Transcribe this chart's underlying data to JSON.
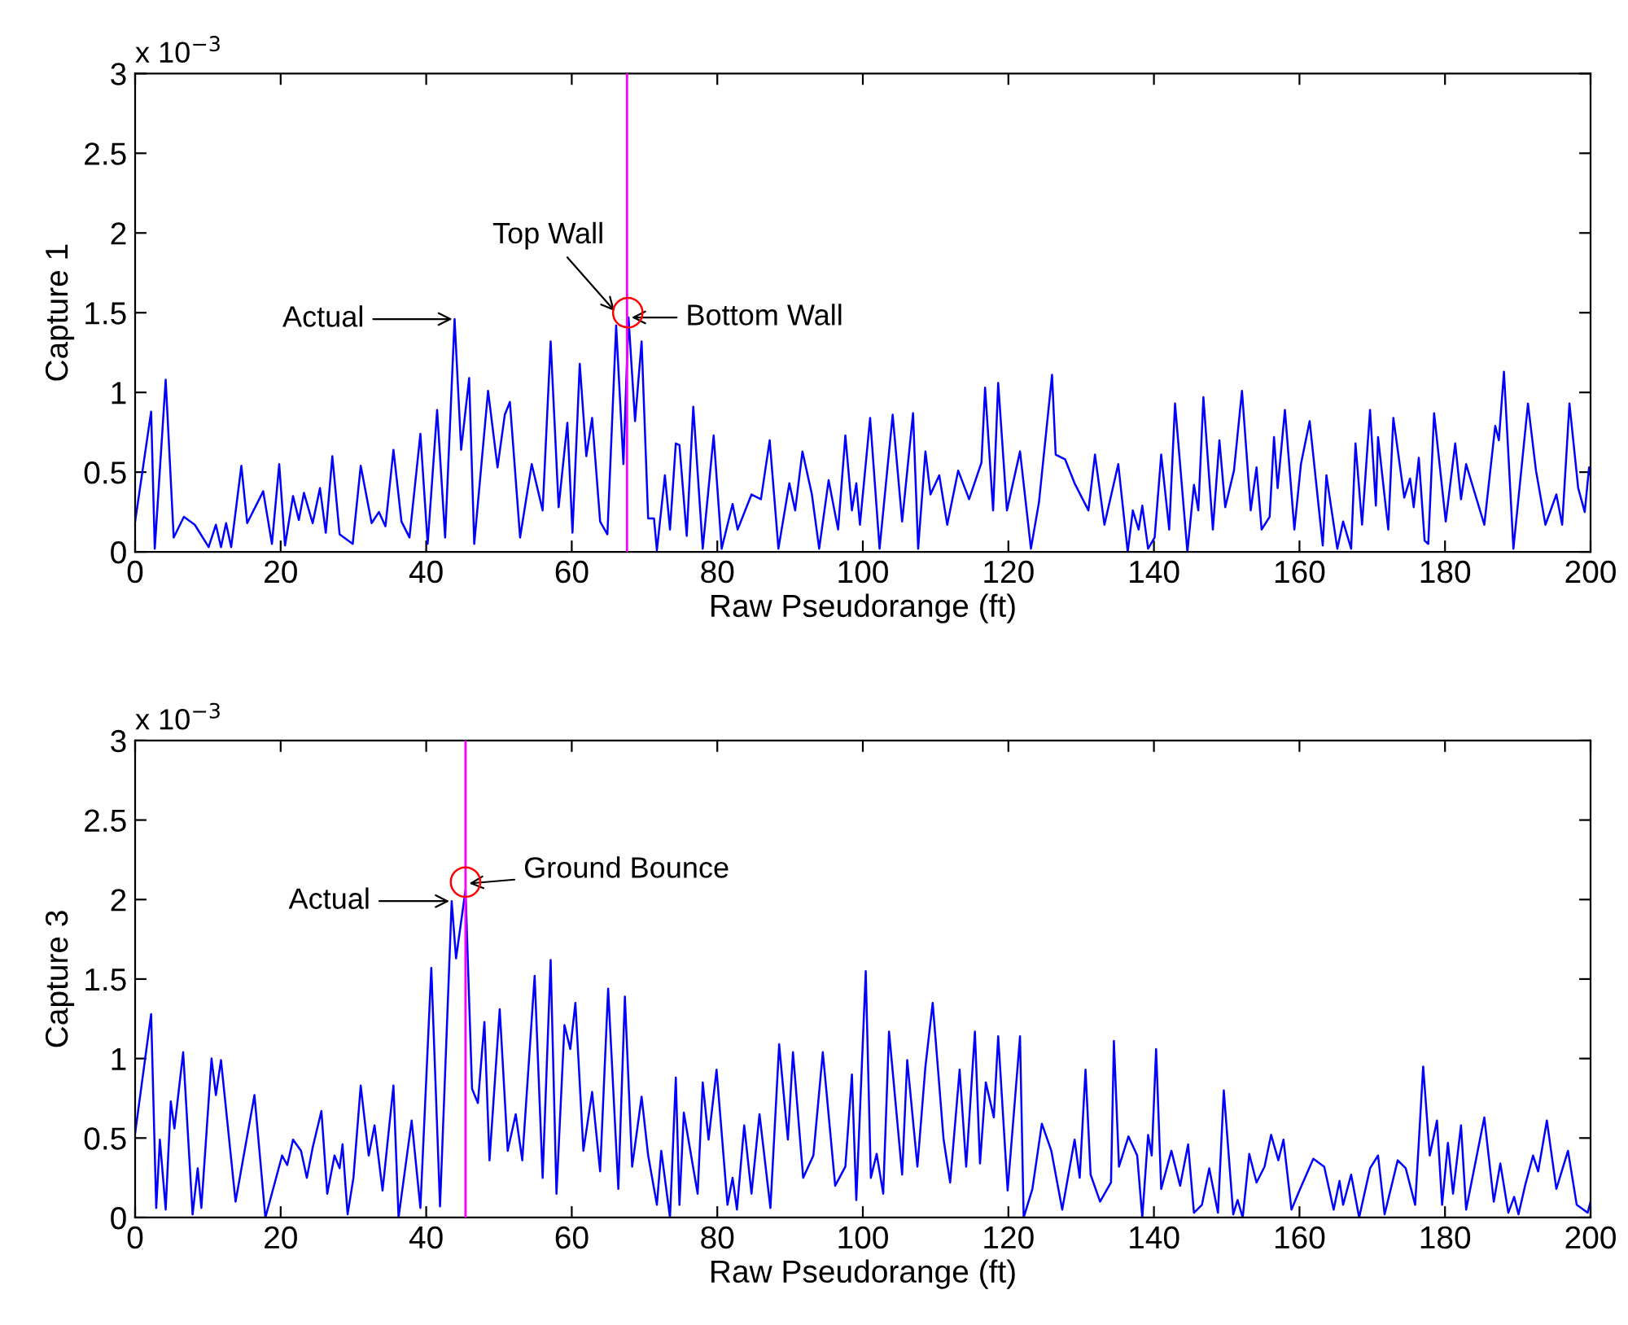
{
  "chart_data": [
    {
      "type": "line",
      "xlabel": "Raw Pseudorange (ft)",
      "ylabel": "Capture 1",
      "xlim": [
        0,
        200
      ],
      "ylim": [
        0,
        3
      ],
      "xticks": [
        0,
        20,
        40,
        60,
        80,
        100,
        120,
        140,
        160,
        180,
        200
      ],
      "yticks": [
        0,
        0.5,
        1,
        1.5,
        2,
        2.5,
        3
      ],
      "grid": false,
      "legend": false,
      "series": [
        {
          "color": "#0000ff",
          "x": [
            0,
            2.2,
            2.7,
            4.2,
            5.3,
            6.7,
            8.2,
            10.1,
            11.1,
            11.8,
            12.5,
            13.2,
            14.6,
            15.4,
            17.6,
            18.8,
            19.8,
            20.6,
            21.7,
            22.5,
            23.2,
            24.4,
            25.4,
            26.2,
            27.1,
            28.1,
            29.9,
            31.0,
            32.5,
            33.5,
            34.4,
            35.5,
            36.6,
            37.7,
            39.2,
            40.2,
            41.5,
            42.6,
            43.9,
            44.8,
            45.9,
            46.6,
            48.5,
            49.8,
            50.8,
            51.5,
            52.9,
            54.5,
            56.0,
            57.1,
            58.2,
            59.4,
            60.1,
            61.1,
            62.0,
            62.8,
            63.9,
            64.9,
            66.1,
            67.1,
            67.8,
            68.7,
            69.6,
            70.5,
            71.3,
            71.7,
            72.8,
            73.5,
            74.3,
            74.8,
            75.8,
            76.7,
            78.0,
            79.5,
            80.6,
            82.1,
            82.8,
            84.7,
            86.0,
            87.2,
            88.4,
            89.9,
            90.7,
            91.7,
            93.0,
            94.0,
            95.3,
            96.6,
            97.6,
            98.5,
            99.1,
            99.6,
            101.0,
            102.3,
            104.1,
            105.4,
            106.9,
            107.6,
            108.6,
            109.3,
            110.5,
            111.6,
            113.1,
            114.6,
            116.3,
            116.8,
            117.9,
            118.6,
            119.8,
            121.6,
            123.1,
            124.2,
            126.0,
            126.5,
            127.8,
            129.1,
            131.0,
            131.9,
            133.2,
            135.1,
            136.4,
            137.1,
            137.9,
            138.4,
            139.2,
            140.1,
            141.0,
            142.1,
            142.9,
            144.6,
            145.5,
            146.1,
            146.8,
            148.1,
            149.0,
            149.8,
            151.0,
            152.1,
            153.3,
            154.1,
            154.8,
            155.9,
            156.5,
            157.0,
            158.0,
            159.3,
            160.2,
            161.4,
            163.2,
            163.7,
            165.2,
            166.0,
            167.1,
            167.7,
            168.6,
            169.7,
            170.5,
            170.8,
            172.2,
            172.9,
            174.4,
            175.2,
            175.7,
            176.4,
            177.2,
            177.7,
            178.5,
            180.1,
            181.4,
            182.2,
            182.9,
            185.4,
            186.9,
            187.4,
            188.1,
            189.4,
            191.4,
            192.5,
            193.8,
            195.3,
            196.1,
            197.1,
            198.3,
            199.2,
            199.8,
            200
          ],
          "values": [
            0.19,
            0.88,
            0.02,
            1.08,
            0.09,
            0.22,
            0.17,
            0.03,
            0.17,
            0.03,
            0.18,
            0.03,
            0.54,
            0.18,
            0.38,
            0.05,
            0.55,
            0.04,
            0.35,
            0.2,
            0.37,
            0.18,
            0.4,
            0.12,
            0.6,
            0.11,
            0.05,
            0.54,
            0.18,
            0.25,
            0.16,
            0.64,
            0.19,
            0.09,
            0.74,
            0.05,
            0.89,
            0.09,
            1.46,
            0.64,
            1.09,
            0.05,
            1.01,
            0.53,
            0.86,
            0.94,
            0.09,
            0.55,
            0.26,
            1.32,
            0.28,
            0.81,
            0.12,
            1.18,
            0.6,
            0.84,
            0.19,
            0.11,
            1.42,
            0.55,
            1.47,
            0.82,
            1.32,
            0.21,
            0.21,
            0.01,
            0.48,
            0.14,
            0.68,
            0.67,
            0.1,
            0.91,
            0.02,
            0.73,
            0.02,
            0.3,
            0.14,
            0.36,
            0.33,
            0.7,
            0.02,
            0.43,
            0.26,
            0.63,
            0.36,
            0.02,
            0.45,
            0.14,
            0.73,
            0.26,
            0.43,
            0.17,
            0.84,
            0.02,
            0.86,
            0.19,
            0.87,
            0.02,
            0.63,
            0.36,
            0.48,
            0.17,
            0.51,
            0.33,
            0.56,
            1.03,
            0.26,
            1.06,
            0.26,
            0.63,
            0.02,
            0.31,
            1.11,
            0.61,
            0.58,
            0.43,
            0.26,
            0.61,
            0.17,
            0.55,
            0.0,
            0.26,
            0.14,
            0.29,
            0.02,
            0.09,
            0.61,
            0.14,
            0.93,
            0.0,
            0.42,
            0.26,
            0.97,
            0.14,
            0.7,
            0.28,
            0.51,
            1.01,
            0.26,
            0.53,
            0.14,
            0.22,
            0.72,
            0.4,
            0.89,
            0.14,
            0.55,
            0.82,
            0.04,
            0.48,
            0.02,
            0.19,
            0.02,
            0.68,
            0.17,
            0.89,
            0.29,
            0.72,
            0.14,
            0.84,
            0.34,
            0.46,
            0.28,
            0.59,
            0.07,
            0.05,
            0.87,
            0.19,
            0.68,
            0.33,
            0.55,
            0.17,
            0.79,
            0.7,
            1.13,
            0.02,
            0.93,
            0.51,
            0.17,
            0.36,
            0.17,
            0.93,
            0.4,
            0.25,
            0.53,
            0.48
          ]
        },
        {
          "type": "scatter",
          "color": "#ff0000",
          "marker": "circle",
          "x": [
            67.7
          ],
          "values": [
            1.5
          ]
        }
      ],
      "ref_lines": [
        {
          "axis": "x",
          "value": 67.6,
          "color": "#ff00ff"
        }
      ],
      "annotations": [
        "x 10$^{−3}$",
        {
          "text": "Actual",
          "x": 43.9,
          "y": 1.46
        },
        {
          "text": "Top Wall",
          "x": 66.1,
          "y": 1.5
        },
        {
          "text": "Bottom Wall",
          "x": 67.9,
          "y": 1.47
        }
      ]
    },
    {
      "type": "line",
      "xlabel": "Raw Pseudorange (ft)",
      "ylabel": "Capture 3",
      "xlim": [
        0,
        200
      ],
      "ylim": [
        0,
        3
      ],
      "xticks": [
        0,
        20,
        40,
        60,
        80,
        100,
        120,
        140,
        160,
        180,
        200
      ],
      "yticks": [
        0,
        0.5,
        1,
        1.5,
        2,
        2.5,
        3
      ],
      "grid": false,
      "legend": false,
      "series": [
        {
          "color": "#0000ff",
          "x": [
            0,
            2.2,
            2.9,
            3.4,
            4.2,
            4.9,
            5.4,
            6.6,
            7.9,
            8.6,
            9.1,
            10.5,
            11.1,
            11.8,
            13.8,
            16.4,
            17.9,
            20.2,
            20.9,
            21.7,
            22.8,
            23.6,
            24.4,
            25.6,
            26.4,
            27.4,
            28.1,
            28.5,
            29.2,
            30.0,
            31.0,
            32.1,
            32.9,
            34.0,
            35.5,
            36.2,
            38.0,
            39.2,
            40.7,
            41.9,
            43.5,
            44.1,
            45.4,
            46.3,
            47.1,
            48.0,
            48.7,
            50.1,
            51.2,
            52.3,
            53.2,
            54.9,
            56.0,
            57.1,
            57.9,
            59.0,
            59.8,
            60.5,
            61.6,
            62.8,
            63.9,
            65.0,
            66.4,
            67.3,
            68.3,
            69.6,
            70.5,
            71.7,
            72.3,
            73.5,
            74.3,
            74.8,
            75.4,
            77.3,
            78.0,
            78.8,
            79.9,
            81.4,
            82.1,
            82.7,
            83.7,
            84.7,
            85.8,
            87.3,
            88.5,
            89.7,
            90.4,
            91.8,
            93.2,
            94.5,
            96.2,
            97.6,
            98.5,
            99.1,
            100.4,
            101.1,
            101.9,
            102.8,
            103.6,
            105.4,
            106.1,
            107.5,
            108.6,
            109.6,
            111.1,
            112.0,
            113.3,
            114.2,
            115.4,
            116.1,
            116.9,
            118.0,
            118.6,
            119.9,
            121.6,
            122.1,
            123.3,
            124.6,
            125.9,
            127.4,
            129.1,
            129.8,
            130.6,
            131.3,
            132.6,
            134.1,
            134.5,
            135.2,
            136.5,
            137.7,
            138.4,
            139.2,
            139.7,
            140.3,
            141.0,
            142.4,
            143.6,
            144.7,
            145.5,
            146.6,
            147.6,
            148.8,
            149.6,
            150.9,
            151.5,
            152.2,
            153.1,
            154.1,
            155.2,
            156.1,
            157.1,
            157.8,
            158.9,
            160.0,
            161.9,
            163.4,
            164.7,
            165.5,
            166.0,
            167.1,
            168.2,
            169.7,
            170.8,
            171.7,
            173.5,
            174.6,
            175.9,
            177.0,
            177.9,
            178.9,
            179.6,
            180.4,
            181.1,
            182.2,
            182.9,
            185.4,
            186.7,
            187.6,
            188.7,
            189.5,
            190.1,
            191.0,
            192.1,
            192.8,
            194.0,
            195.3,
            196.9,
            198.1,
            199.6,
            200
          ],
          "values": [
            0.53,
            1.28,
            0.06,
            0.49,
            0.05,
            0.73,
            0.56,
            1.04,
            0.02,
            0.31,
            0.06,
            1.0,
            0.77,
            0.99,
            0.1,
            0.77,
            0.0,
            0.39,
            0.33,
            0.49,
            0.42,
            0.25,
            0.44,
            0.67,
            0.15,
            0.39,
            0.31,
            0.46,
            0.02,
            0.25,
            0.83,
            0.39,
            0.58,
            0.17,
            0.83,
            0.0,
            0.61,
            0.06,
            1.57,
            0.07,
            1.99,
            1.63,
            2.06,
            0.81,
            0.72,
            1.23,
            0.36,
            1.31,
            0.42,
            0.65,
            0.36,
            1.52,
            0.25,
            1.62,
            0.15,
            1.21,
            1.06,
            1.35,
            0.42,
            0.79,
            0.29,
            1.44,
            0.18,
            1.39,
            0.32,
            0.76,
            0.39,
            0.08,
            0.42,
            0.0,
            0.88,
            0.08,
            0.66,
            0.15,
            0.85,
            0.49,
            0.93,
            0.08,
            0.25,
            0.05,
            0.58,
            0.15,
            0.65,
            0.06,
            1.09,
            0.49,
            1.04,
            0.25,
            0.39,
            1.04,
            0.2,
            0.32,
            0.9,
            0.11,
            1.55,
            0.25,
            0.4,
            0.15,
            1.17,
            0.27,
            0.99,
            0.32,
            0.95,
            1.35,
            0.49,
            0.22,
            0.93,
            0.32,
            1.17,
            0.34,
            0.85,
            0.63,
            1.14,
            0.17,
            1.14,
            0.0,
            0.18,
            0.59,
            0.42,
            0.05,
            0.49,
            0.25,
            0.93,
            0.27,
            0.1,
            0.22,
            1.11,
            0.32,
            0.51,
            0.39,
            0.0,
            0.52,
            0.39,
            1.06,
            0.18,
            0.42,
            0.2,
            0.46,
            0.03,
            0.08,
            0.31,
            0.03,
            0.8,
            0.02,
            0.11,
            0.0,
            0.4,
            0.22,
            0.32,
            0.52,
            0.36,
            0.49,
            0.05,
            0.17,
            0.37,
            0.32,
            0.05,
            0.23,
            0.08,
            0.27,
            0.0,
            0.31,
            0.39,
            0.02,
            0.36,
            0.31,
            0.08,
            0.95,
            0.39,
            0.61,
            0.08,
            0.47,
            0.15,
            0.58,
            0.05,
            0.63,
            0.1,
            0.34,
            0.03,
            0.13,
            0.02,
            0.2,
            0.39,
            0.29,
            0.61,
            0.18,
            0.42,
            0.08,
            0.03,
            0.1
          ]
        },
        {
          "type": "scatter",
          "color": "#ff0000",
          "marker": "circle",
          "x": [
            45.4
          ],
          "values": [
            2.11
          ]
        }
      ],
      "ref_lines": [
        {
          "axis": "x",
          "value": 45.4,
          "color": "#ff00ff"
        }
      ],
      "annotations": [
        "x 10$^{−3}$",
        {
          "text": "Actual",
          "x": 43.5,
          "y": 1.99
        },
        {
          "text": "Ground Bounce",
          "x": 45.6,
          "y": 2.1
        }
      ]
    }
  ]
}
